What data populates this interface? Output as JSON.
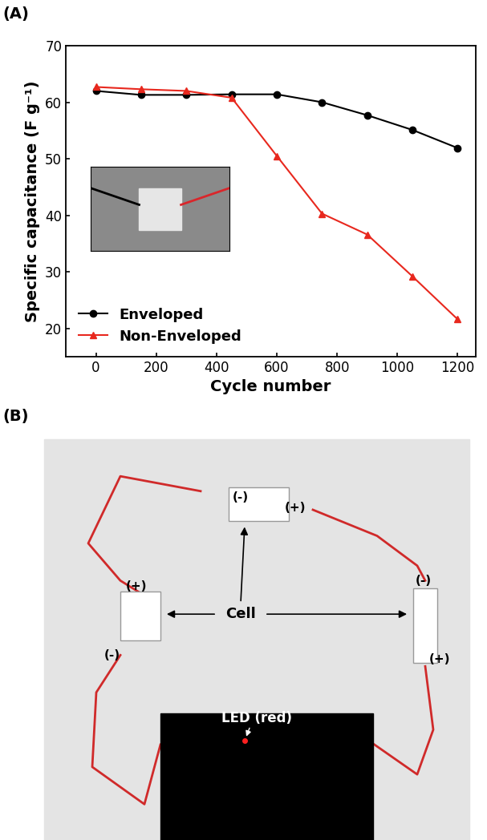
{
  "chart_data": {
    "type": "line",
    "title": "(A)",
    "x_label": "Cycle number",
    "y_label": "Specific capacitance (F g⁻¹)",
    "x": [
      0,
      150,
      300,
      450,
      600,
      750,
      900,
      1050,
      1200
    ],
    "series": [
      {
        "name": "Enveloped",
        "color": "#000000",
        "marker": "circle",
        "line_style": "solid",
        "values": [
          62.0,
          61.3,
          61.3,
          61.4,
          61.4,
          60.0,
          57.7,
          55.1,
          51.9
        ]
      },
      {
        "name": "Non-Enveloped",
        "color": "#e8281e",
        "marker": "triangle",
        "line_style": "solid",
        "values": [
          62.7,
          62.3,
          62.0,
          60.8,
          50.5,
          40.3,
          36.6,
          29.2,
          21.6
        ]
      }
    ],
    "xlim": [
      -100,
      1260
    ],
    "xticks": [
      0,
      200,
      400,
      600,
      800,
      1000,
      1200
    ],
    "ylim": [
      15,
      70
    ],
    "yticks": [
      20,
      30,
      40,
      50,
      60,
      70
    ],
    "grid": false,
    "legend": "lower left"
  },
  "photo": {
    "label": "(B)",
    "cell_label": "Cell",
    "led_label": "LED (red)",
    "terminals": [
      "(-)",
      "(+)",
      "(+)",
      "(-)",
      "(-)",
      "(+)"
    ]
  }
}
